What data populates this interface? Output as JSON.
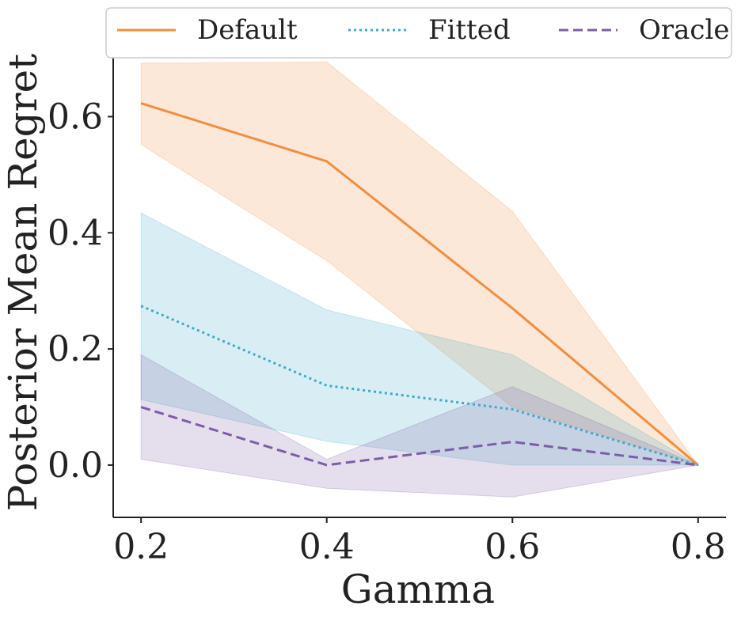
{
  "chart_data": {
    "type": "line",
    "xlabel": "Gamma",
    "ylabel": "Posterior Mean Regret",
    "x": [
      0.2,
      0.4,
      0.6,
      0.8
    ],
    "xticks": [
      "0.2",
      "0.4",
      "0.6",
      "0.8"
    ],
    "yticks": [
      "0.0",
      "0.2",
      "0.4",
      "0.6"
    ],
    "xlim": [
      0.17,
      0.83
    ],
    "ylim": [
      -0.09,
      0.73
    ],
    "grid": false,
    "legend_position": "top",
    "series": [
      {
        "name": "Default",
        "color": "#f28e3c",
        "line_style": "solid",
        "values": [
          0.623,
          0.523,
          0.27,
          0.0
        ],
        "lower": [
          0.552,
          0.352,
          0.1,
          0.0
        ],
        "upper": [
          0.692,
          0.694,
          0.437,
          0.0
        ]
      },
      {
        "name": "Fitted",
        "color": "#3fa9c9",
        "line_style": "dotted",
        "values": [
          0.274,
          0.137,
          0.096,
          0.0
        ],
        "lower": [
          0.113,
          0.041,
          0.0,
          0.0
        ],
        "upper": [
          0.434,
          0.267,
          0.19,
          0.0
        ]
      },
      {
        "name": "Oracle",
        "color": "#7b5ea7",
        "line_style": "dashed",
        "values": [
          0.1,
          0.0,
          0.04,
          0.0
        ],
        "lower": [
          0.01,
          -0.04,
          -0.055,
          0.0
        ],
        "upper": [
          0.19,
          0.01,
          0.135,
          0.0
        ]
      }
    ]
  }
}
